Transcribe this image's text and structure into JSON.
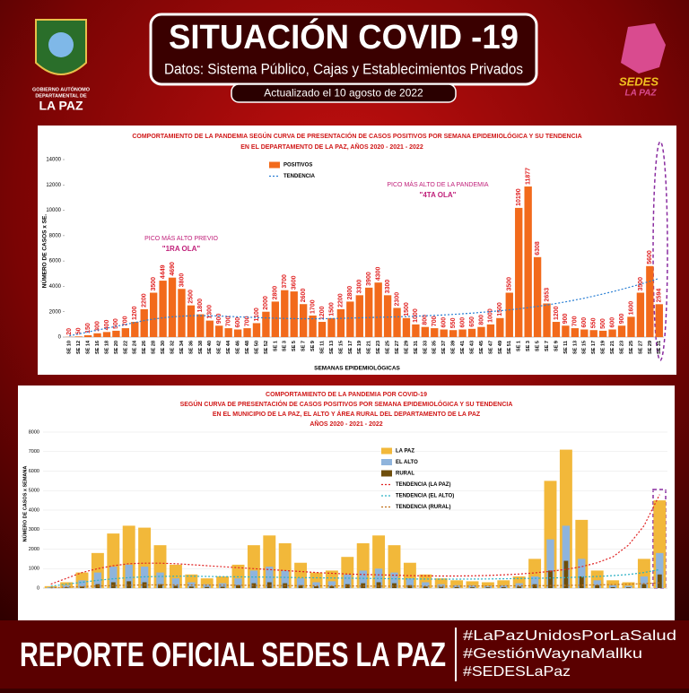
{
  "header": {
    "title": "SITUACIÓN COVID -19",
    "subtitle": "Datos: Sistema Público, Cajas y Establecimientos Privados",
    "updated": "Actualizado el  10  agosto  de 2022",
    "left_logo": [
      "GOBIERNO AUTÓNOMO",
      "DEPARTAMENTAL DE",
      "LA PAZ"
    ],
    "right_logo": [
      "SEDES",
      "LA PAZ"
    ]
  },
  "chart_data": [
    {
      "type": "bar",
      "title": [
        "COMPORTAMIENTO DE LA PANDEMIA SEGÚN CURVA DE PRESENTACIÓN DE CASOS POSITIVOS POR SEMANA EPIDEMIOLÓGICA Y SU TENDENCIA",
        "EN EL DEPARTAMENTO DE LA PAZ, AÑOS 2020 - 2021 - 2022"
      ],
      "y_label": "NÚMERO DE CASOS x SE.",
      "x_label": "SEMANAS EPIDEMIOLÓGICAS",
      "annotations": [
        [
          "PICO MÁS ALTO PREVIO",
          "\"1RA OLA\""
        ],
        [
          "PICO MÁS ALTO DE LA PANDEMIA",
          "\"4TA OLA\""
        ]
      ],
      "categories": [
        "SE 10",
        "SE 12",
        "SE 14",
        "SE 16",
        "SE 18",
        "SE 20",
        "SE 22",
        "SE 24",
        "SE 26",
        "SE 28",
        "SE 30",
        "SE 32",
        "SE 34",
        "SE 36",
        "SE 38",
        "SE 40",
        "SE 42",
        "SE 44",
        "SE 46",
        "SE 48",
        "SE 50",
        "SE 52",
        "SE 1",
        "SE 3",
        "SE 5",
        "SE 7",
        "SE 9",
        "SE 11",
        "SE 13",
        "SE 15",
        "SE 17",
        "SE 19",
        "SE 21",
        "SE 23",
        "SE 25",
        "SE 27",
        "SE 29",
        "SE 31",
        "SE 33",
        "SE 35",
        "SE 37",
        "SE 39",
        "SE 41",
        "SE 43",
        "SE 45",
        "SE 47",
        "SE 49",
        "SE 51",
        "SE 1",
        "SE 3",
        "SE 5",
        "SE 7",
        "SE 9",
        "SE 11",
        "SE 13",
        "SE 15",
        "SE 17",
        "SE 19",
        "SE 21",
        "SE 23",
        "SE 25",
        "SE 27",
        "SE 29",
        "SE 31"
      ],
      "series": [
        {
          "name": "POSITIVOS",
          "type": "bar",
          "color": "#f26a1b",
          "values": [
            20,
            50,
            150,
            300,
            400,
            500,
            700,
            1200,
            2200,
            3500,
            4449,
            4690,
            3800,
            2500,
            1800,
            1300,
            900,
            700,
            600,
            700,
            1100,
            2000,
            2800,
            3700,
            3600,
            2600,
            1700,
            1200,
            1500,
            2200,
            2800,
            3300,
            3900,
            4300,
            3300,
            2300,
            1500,
            1000,
            800,
            700,
            600,
            550,
            600,
            650,
            800,
            1000,
            1500,
            3500,
            10190,
            11877,
            6308,
            2653,
            1200,
            900,
            700,
            600,
            550,
            500,
            600,
            900,
            1600,
            3500,
            5600,
            2594
          ]
        },
        {
          "name": "TENDENCIA",
          "type": "line",
          "color": "#2a7fd4",
          "values": [
            100,
            250,
            400,
            550,
            700,
            850,
            1000,
            1150,
            1300,
            1420,
            1520,
            1600,
            1650,
            1680,
            1690,
            1680,
            1660,
            1630,
            1600,
            1570,
            1540,
            1510,
            1490,
            1470,
            1460,
            1450,
            1450,
            1450,
            1460,
            1480,
            1500,
            1520,
            1540,
            1560,
            1580,
            1600,
            1620,
            1650,
            1680,
            1710,
            1750,
            1790,
            1840,
            1890,
            1950,
            2010,
            2080,
            2150,
            2230,
            2320,
            2420,
            2530,
            2650,
            2780,
            2920,
            3070,
            3230,
            3400,
            3580,
            3770,
            3970,
            4180,
            4400,
            4630
          ]
        }
      ],
      "ylim": [
        0,
        14000
      ],
      "yticks": [
        0,
        2000,
        4000,
        6000,
        8000,
        10000,
        12000,
        14000
      ],
      "grid": false,
      "legend": "top-center"
    },
    {
      "type": "bar",
      "title": [
        "COMPORTAMIENTO DE LA PANDEMIA POR COVID-19",
        "SEGÚN CURVA DE PRESENTACIÓN DE CASOS POSITIVOS POR SEMANA EPIDEMIOLÓGICA Y SU TENDENCIA",
        "EN EL  MUNICIPIO DE LA PAZ, EL ALTO Y ÁREA RURAL DEL DEPARTAMENTO DE LA PAZ",
        "AÑOS 2020 - 2021 - 2022"
      ],
      "y_label": "NÚMERO DE CASOS x SEMANA",
      "categories": [
        null,
        null,
        null,
        null,
        null,
        null,
        null,
        null,
        null,
        null,
        null,
        null,
        null,
        null,
        null,
        null,
        null,
        null,
        null,
        null,
        null,
        null,
        null,
        null,
        null,
        null,
        null,
        null,
        null,
        null,
        null,
        null,
        null,
        null,
        null,
        null,
        null,
        null,
        null,
        null
      ],
      "series": [
        {
          "name": "LA PAZ",
          "type": "bar",
          "color": "#f2b83a",
          "values": [
            100,
            300,
            800,
            1800,
            2800,
            3200,
            3100,
            2200,
            1200,
            700,
            500,
            600,
            1200,
            2200,
            2700,
            2300,
            1300,
            800,
            900,
            1600,
            2300,
            2700,
            2200,
            1300,
            700,
            500,
            400,
            350,
            300,
            400,
            600,
            1500,
            5500,
            7100,
            3500,
            900,
            400,
            300,
            1500,
            4500
          ]
        },
        {
          "name": "EL ALTO",
          "type": "bar",
          "color": "#8fb4dc",
          "values": [
            50,
            150,
            400,
            800,
            1100,
            1200,
            1100,
            800,
            500,
            300,
            200,
            250,
            500,
            900,
            1100,
            900,
            500,
            300,
            350,
            700,
            900,
            1000,
            800,
            500,
            300,
            200,
            150,
            150,
            120,
            150,
            250,
            600,
            2500,
            3200,
            1500,
            400,
            150,
            120,
            600,
            1800
          ]
        },
        {
          "name": "RURAL",
          "type": "bar",
          "color": "#6e4e0c",
          "values": [
            10,
            30,
            80,
            200,
            300,
            350,
            300,
            200,
            120,
            80,
            60,
            70,
            150,
            250,
            300,
            250,
            150,
            90,
            100,
            200,
            250,
            300,
            250,
            150,
            80,
            60,
            50,
            40,
            40,
            50,
            80,
            200,
            900,
            1400,
            600,
            150,
            50,
            40,
            200,
            700
          ]
        },
        {
          "name": "TENDENCIA (LA PAZ)",
          "type": "line",
          "color": "#e02424",
          "values": [
            200,
            500,
            800,
            1000,
            1150,
            1250,
            1280,
            1280,
            1250,
            1200,
            1150,
            1100,
            1050,
            1000,
            950,
            900,
            850,
            800,
            760,
            720,
            700,
            680,
            660,
            640,
            630,
            620,
            620,
            630,
            650,
            680,
            720,
            780,
            860,
            960,
            1100,
            1300,
            1600,
            2200,
            3200,
            4800
          ]
        },
        {
          "name": "TENDENCIA (EL ALTO)",
          "type": "line",
          "color": "#2ab0c4",
          "values": [
            100,
            200,
            300,
            400,
            480,
            540,
            580,
            600,
            610,
            610,
            600,
            590,
            580,
            570,
            560,
            550,
            540,
            530,
            520,
            510,
            500,
            490,
            480,
            470,
            465,
            460,
            460,
            465,
            470,
            480,
            490,
            500,
            520,
            540,
            570,
            600,
            640,
            700,
            800,
            950
          ]
        },
        {
          "name": "TENDENCIA (RURAL)",
          "type": "line",
          "color": "#c0701a",
          "values": [
            20,
            50,
            80,
            110,
            130,
            150,
            160,
            165,
            165,
            160,
            155,
            150,
            145,
            140,
            135,
            130,
            125,
            120,
            115,
            110,
            105,
            100,
            100,
            100,
            100,
            100,
            100,
            105,
            110,
            115,
            120,
            125,
            130,
            140,
            150,
            165,
            180,
            200,
            230,
            270
          ]
        }
      ],
      "ylim": [
        0,
        8000
      ],
      "yticks": [
        0,
        1000,
        2000,
        3000,
        4000,
        5000,
        6000,
        7000,
        8000
      ],
      "grid": true,
      "legend": "top-center"
    }
  ],
  "footer": {
    "title": "REPORTE OFICIAL SEDES LA PAZ",
    "hashtags": [
      "#LaPazUnidosPorLaSalud",
      "#GestiónWaynaMallku",
      "#SEDESLaPaz"
    ]
  }
}
